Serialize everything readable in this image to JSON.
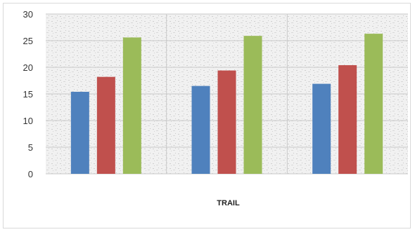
{
  "chart_data": {
    "type": "bar",
    "title": "",
    "xlabel": "TRAIL",
    "ylabel": "",
    "ylim": [
      0,
      30
    ],
    "yticks": [
      0,
      5,
      10,
      15,
      20,
      25,
      30
    ],
    "categories": [
      "",
      "",
      ""
    ],
    "grid": true,
    "legend": "none",
    "series": [
      {
        "color": "#4f81bd",
        "values": [
          15.4,
          16.5,
          16.9
        ]
      },
      {
        "color": "#c0504d",
        "values": [
          18.2,
          19.4,
          20.4
        ]
      },
      {
        "color": "#9bbb59",
        "values": [
          25.6,
          25.9,
          26.3
        ]
      }
    ]
  }
}
